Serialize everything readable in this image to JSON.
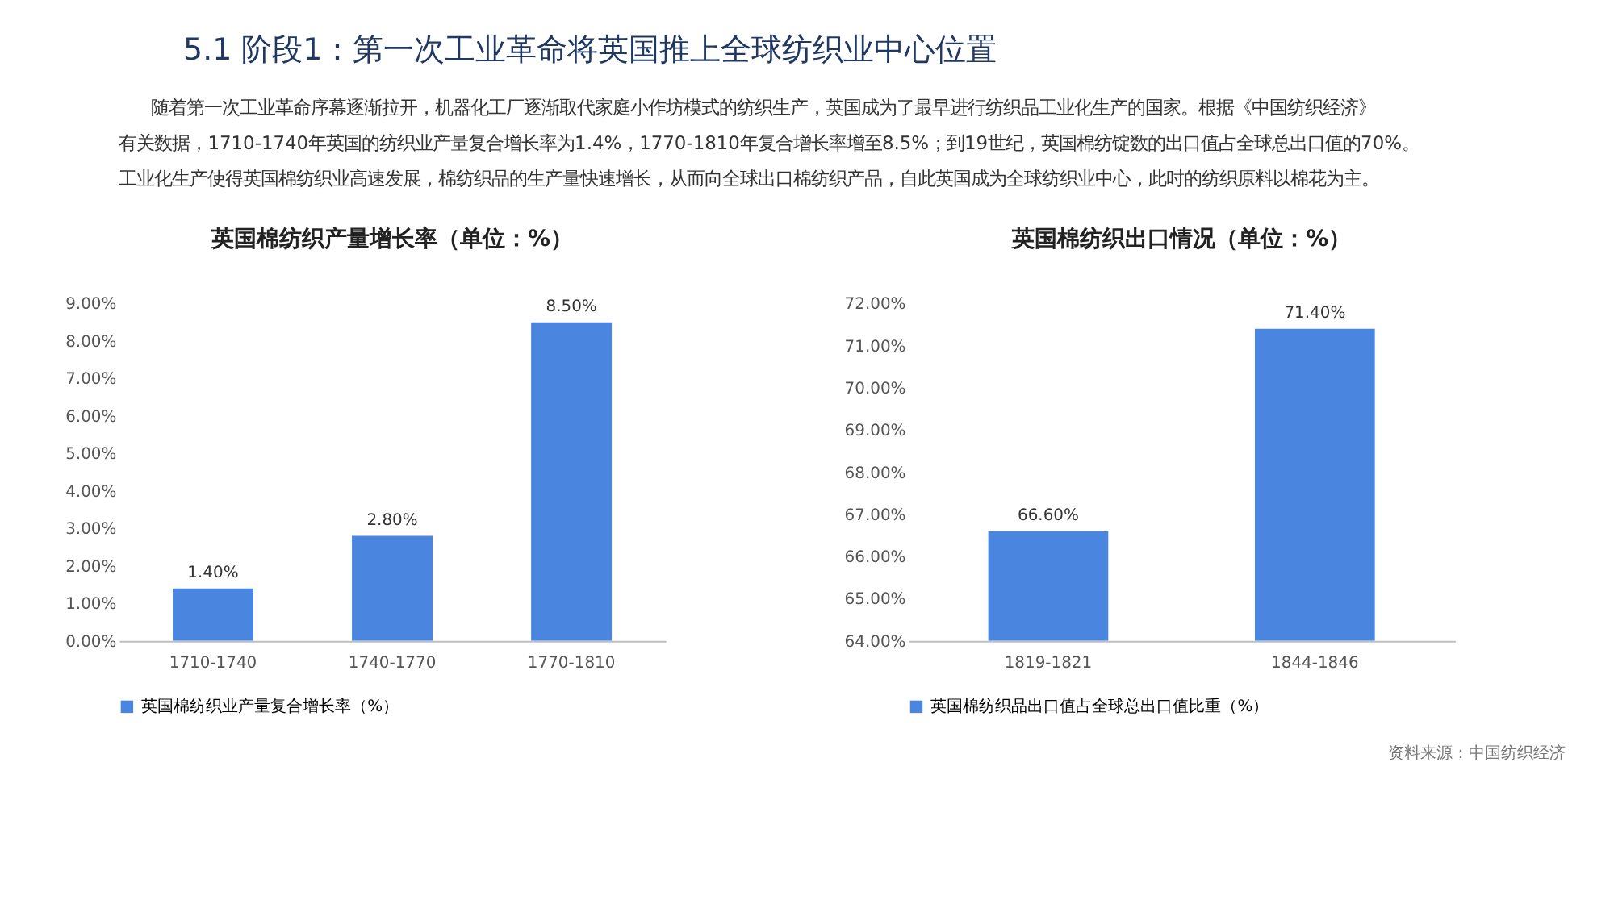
{
  "chart_data": [
    {
      "type": "bar",
      "title": "英国棉纺织产量增长率（单位：%）",
      "annotations": [
        "5.1 阶段1：第一次工业革命将英国推上全球纺织业中心位置",
        "随着第一次工业革命序幕逐渐拉开，机器化工厂逐渐取代家庭小作坊模式的纺织生产，英国成为了最早进行纺织品工业化生产的国家。根据《中国纺织经济》",
        "有关数据，1710-1740年英国的纺织业产量复合增长率为1.4%，1770-1810年复合增长率增至8.5%；到19世纪，英国棉纺锭数的出口值占全球总出口值的70%。",
        "工业化生产使得英国棉纺织业高速发展，棉纺织品的生产量快速增长，从而向全球出口棉纺织产品，自此英国成为全球纺织业中心，此时的纺织原料以棉花为主。"
      ],
      "categories": [
        "1710-1740",
        "1740-1770",
        "1770-1810"
      ],
      "series": [
        {
          "name": "英国棉纺织业产量复合增长率（%）",
          "color": "#4a86e0",
          "values": [
            1.4,
            2.8,
            8.5
          ],
          "value_labels": [
            "1.40%",
            "2.80%",
            "8.50%"
          ]
        }
      ],
      "ylim": [
        0,
        9
      ],
      "yticks": [
        {
          "value": 0,
          "label": "0.00%"
        },
        {
          "value": 1,
          "label": "1.00%"
        },
        {
          "value": 2,
          "label": "2.00%"
        },
        {
          "value": 3,
          "label": "3.00%"
        },
        {
          "value": 4,
          "label": "4.00%"
        },
        {
          "value": 5,
          "label": "5.00%"
        },
        {
          "value": 6,
          "label": "6.00%"
        },
        {
          "value": 7,
          "label": "7.00%"
        },
        {
          "value": 8,
          "label": "8.00%"
        },
        {
          "value": 9,
          "label": "9.00%"
        }
      ],
      "grid": false,
      "legend": "bottom"
    },
    {
      "type": "bar",
      "title": "英国棉纺织出口情况（单位：%）",
      "annotations": [
        "资料来源：中国纺织经济"
      ],
      "categories": [
        "1819-1821",
        "1844-1846"
      ],
      "series": [
        {
          "name": "英国棉纺织品出口值占全球总出口值比重（%）",
          "color": "#4a86e0",
          "values": [
            66.6,
            71.4
          ],
          "value_labels": [
            "66.60%",
            "71.40%"
          ]
        }
      ],
      "ylim": [
        64,
        72
      ],
      "yticks": [
        {
          "value": 64,
          "label": "64.00%"
        },
        {
          "value": 65,
          "label": "65.00%"
        },
        {
          "value": 66,
          "label": "66.00%"
        },
        {
          "value": 67,
          "label": "67.00%"
        },
        {
          "value": 68,
          "label": "68.00%"
        },
        {
          "value": 69,
          "label": "69.00%"
        },
        {
          "value": 70,
          "label": "70.00%"
        },
        {
          "value": 71,
          "label": "71.00%"
        },
        {
          "value": 72,
          "label": "72.00%"
        }
      ],
      "grid": false,
      "legend": "bottom"
    }
  ]
}
